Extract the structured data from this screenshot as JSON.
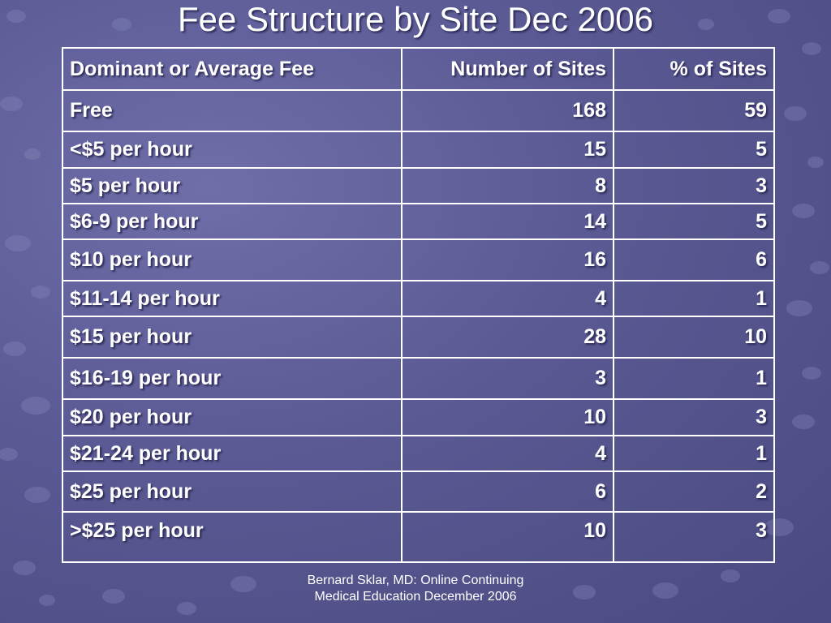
{
  "slide": {
    "title": "Fee Structure by Site Dec 2006",
    "footer_line1": "Bernard Sklar, MD: Online Continuing",
    "footer_line2": "Medical Education December 2006"
  },
  "table": {
    "headers": [
      "Dominant or Average Fee",
      "Number of Sites",
      "% of Sites"
    ],
    "rows": [
      [
        "Free",
        "168",
        "59"
      ],
      [
        "<$5 per hour",
        "15",
        "5"
      ],
      [
        "$5 per hour",
        "8",
        "3"
      ],
      [
        "$6-9 per hour",
        "14",
        "5"
      ],
      [
        "$10 per hour",
        "16",
        "6"
      ],
      [
        "$11-14 per hour",
        "4",
        "1"
      ],
      [
        "$15 per hour",
        "28",
        "10"
      ],
      [
        "$16-19 per hour",
        "3",
        "1"
      ],
      [
        "$20 per hour",
        "10",
        "3"
      ],
      [
        "$21-24 per hour",
        "4",
        "1"
      ],
      [
        "$25 per hour",
        "6",
        "2"
      ],
      [
        ">$25 per hour",
        "10",
        "3"
      ]
    ]
  },
  "colors": {
    "background": "#5a5993",
    "text": "#ffffff",
    "bubble": "#8483b8"
  }
}
